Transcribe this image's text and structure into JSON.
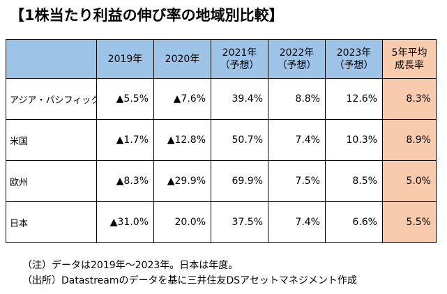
{
  "title": "【1株当たり利益の伸び率の地域別比較】",
  "table": {
    "headers": [
      {
        "line1": "",
        "line2": ""
      },
      {
        "line1": "2019年",
        "line2": ""
      },
      {
        "line1": "2020年",
        "line2": ""
      },
      {
        "line1": "2021年",
        "line2": "（予想）"
      },
      {
        "line1": "2022年",
        "line2": "（予想）"
      },
      {
        "line1": "2023年",
        "line2": "（予想）"
      },
      {
        "line1": "5年平均",
        "line2": "成長率"
      }
    ],
    "rows": [
      {
        "region": "アジア・パシフィック",
        "values": [
          "▲5.5%",
          "▲7.6%",
          "39.4%",
          "8.8%",
          "12.6%",
          "8.3%"
        ]
      },
      {
        "region": "米国",
        "values": [
          "▲1.7%",
          "▲12.8%",
          "50.7%",
          "7.4%",
          "10.3%",
          "8.9%"
        ]
      },
      {
        "region": "欧州",
        "values": [
          "▲8.3%",
          "▲29.9%",
          "69.9%",
          "7.5%",
          "8.5%",
          "5.0%"
        ]
      },
      {
        "region": "日本",
        "values": [
          "▲31.0%",
          "20.0%",
          "37.5%",
          "7.4%",
          "6.6%",
          "5.5%"
        ]
      }
    ]
  },
  "notes": {
    "note": "（注）データは2019年～2023年。日本は年度。",
    "source": "（出所）Datastreamのデータを基に三井住友DSアセットマネジメント作成"
  },
  "colors": {
    "header_bg": "#9dc3e6",
    "avg_bg": "#f8cbad"
  }
}
